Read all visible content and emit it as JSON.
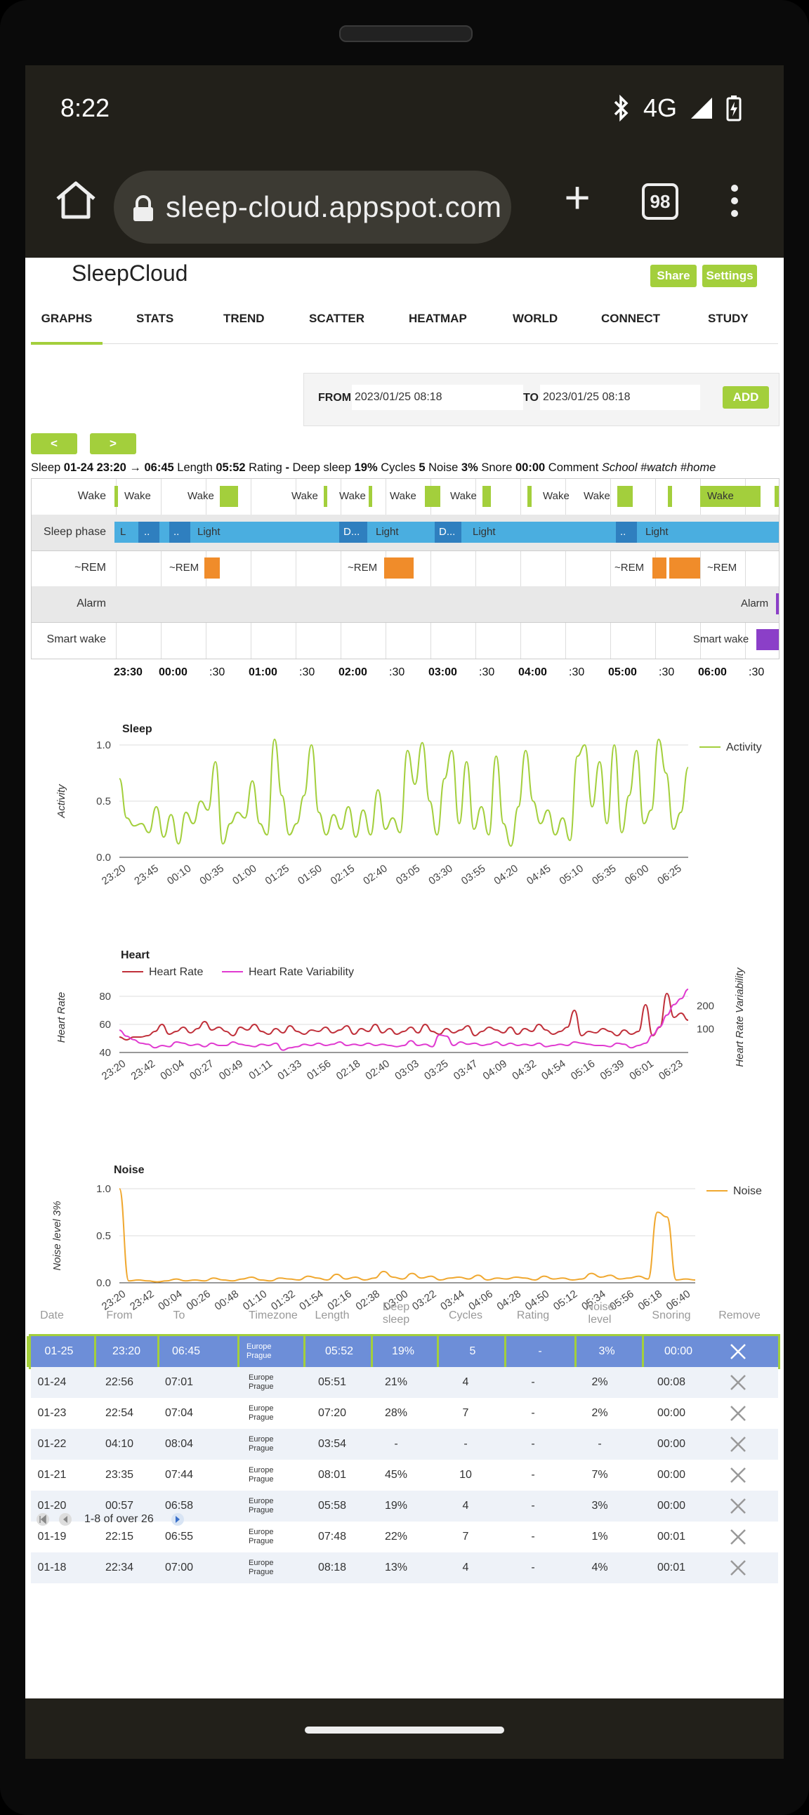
{
  "status": {
    "time": "8:22",
    "network": "4G"
  },
  "browser": {
    "url": "sleep-cloud.appspot.com",
    "tab_count": "98"
  },
  "app": {
    "title": "SleepCloud",
    "share_label": "Share",
    "settings_label": "Settings",
    "tabs": [
      "GRAPHS",
      "STATS",
      "TREND",
      "SCATTER",
      "HEATMAP",
      "WORLD",
      "CONNECT",
      "STUDY"
    ],
    "active_tab": "GRAPHS",
    "range": {
      "from_label": "FROM",
      "from_value": "2023/01/25 08:18",
      "to_label": "TO",
      "to_value": "2023/01/25 08:18",
      "add_label": "ADD"
    },
    "prev_label": "<",
    "next_label": ">"
  },
  "summary": {
    "prefix": "Sleep",
    "start": "01-24 23:20",
    "arrow": "→",
    "end": "06:45",
    "length_label": "Length",
    "length": "05:52",
    "rating_label": "Rating",
    "rating": "-",
    "deep_label": "Deep sleep",
    "deep": "19%",
    "cycles_label": "Cycles",
    "cycles": "5",
    "noise_label": "Noise",
    "noise": "3%",
    "snore_label": "Snore",
    "snore": "00:00",
    "comment_label": "Comment",
    "comment": "School #watch #home"
  },
  "timeline": {
    "rows": [
      "Wake",
      "Sleep phase",
      "~REM",
      "Alarm",
      "Smart wake"
    ],
    "wake_labels": [
      "Wake",
      "Wake",
      "Wake",
      "Wake",
      "Wake",
      "Wake",
      "Wake",
      "Wake",
      "Wake"
    ],
    "phase_labels": [
      "L",
      "..",
      "..",
      "Light",
      "D...",
      "Light",
      "D...",
      "Light",
      "..",
      "Light"
    ],
    "rem_labels": [
      "~REM",
      "~REM",
      "~REM",
      "~REM"
    ],
    "alarm_label": "Alarm",
    "smart_wake_label": "Smart wake",
    "ticks": [
      "23:30",
      "00:00",
      ":30",
      "01:00",
      ":30",
      "02:00",
      ":30",
      "03:00",
      ":30",
      "04:00",
      ":30",
      "05:00",
      ":30",
      "06:00",
      ":30"
    ],
    "colors": {
      "wake": "#a3cf3c",
      "light": "#4aaee0",
      "deep": "#2f7fbf",
      "rem": "#f08c2a",
      "alarm": "#8b3fc8"
    }
  },
  "chart_data": [
    {
      "type": "line",
      "title": "Sleep",
      "ylabel": "Activity",
      "legend": "top-right",
      "ylim": [
        0,
        1.0
      ],
      "yticks": [
        "0.0",
        "0.5",
        "1.0"
      ],
      "xticks": [
        "23:20",
        "23:45",
        "00:10",
        "00:35",
        "01:00",
        "01:25",
        "01:50",
        "02:15",
        "02:40",
        "03:05",
        "03:30",
        "03:55",
        "04:20",
        "04:45",
        "05:10",
        "05:35",
        "06:00",
        "06:25"
      ],
      "series": [
        {
          "name": "Activity",
          "color": "#a3cf3c",
          "values": [
            0.7,
            0.35,
            0.28,
            0.3,
            0.22,
            0.45,
            0.18,
            0.38,
            0.12,
            0.4,
            0.3,
            0.5,
            0.42,
            0.85,
            0.12,
            0.3,
            0.4,
            0.35,
            0.68,
            0.3,
            0.2,
            1.05,
            0.55,
            0.2,
            0.3,
            0.55,
            1.0,
            0.4,
            0.2,
            0.38,
            0.25,
            0.45,
            0.18,
            0.42,
            0.2,
            0.6,
            0.25,
            0.35,
            0.22,
            0.95,
            0.65,
            1.02,
            0.5,
            0.2,
            0.7,
            0.95,
            0.3,
            0.85,
            0.25,
            0.45,
            0.2,
            0.9,
            0.3,
            0.1,
            0.45,
            0.95,
            0.5,
            0.3,
            0.42,
            0.2,
            0.35,
            0.15,
            0.9,
            1.0,
            0.45,
            0.85,
            0.3,
            1.0,
            0.22,
            0.55,
            0.95,
            0.3,
            0.42,
            1.05,
            0.75,
            0.25,
            0.4,
            0.8
          ]
        }
      ]
    },
    {
      "type": "line",
      "title": "Heart",
      "ylabel": "Heart Rate",
      "y2label": "Heart Rate Variability",
      "legend": "top-left",
      "ylim": [
        40,
        90
      ],
      "y2lim": [
        0,
        300
      ],
      "yticks": [
        "40",
        "60",
        "80"
      ],
      "y2ticks": [
        "100",
        "200"
      ],
      "xticks": [
        "23:20",
        "23:42",
        "00:04",
        "00:27",
        "00:49",
        "01:11",
        "01:33",
        "01:56",
        "02:18",
        "02:40",
        "03:03",
        "03:25",
        "03:47",
        "04:09",
        "04:32",
        "04:54",
        "05:16",
        "05:39",
        "06:01",
        "06:23"
      ],
      "series": [
        {
          "name": "Heart Rate",
          "color": "#c0303a",
          "values": [
            51,
            49,
            51,
            51,
            52,
            55,
            60,
            53,
            55,
            58,
            54,
            57,
            62,
            56,
            58,
            55,
            52,
            58,
            56,
            60,
            55,
            53,
            57,
            54,
            59,
            55,
            53,
            56,
            55,
            58,
            54,
            56,
            59,
            53,
            57,
            55,
            60,
            54,
            57,
            53,
            55,
            58,
            54,
            60,
            55,
            53,
            57,
            54,
            56,
            59,
            52,
            55,
            58,
            56,
            54,
            58,
            53,
            57,
            55,
            60,
            56,
            53,
            55,
            58,
            70,
            52,
            55,
            54,
            57,
            55,
            52,
            56,
            53,
            55,
            74,
            52,
            58,
            82,
            65,
            68,
            63
          ]
        },
        {
          "name": "Heart Rate Variability",
          "color": "#e03ad0",
          "values": [
            95,
            70,
            55,
            40,
            35,
            20,
            30,
            25,
            45,
            40,
            30,
            35,
            25,
            40,
            30,
            30,
            45,
            35,
            30,
            25,
            35,
            30,
            40,
            10,
            20,
            25,
            35,
            30,
            40,
            30,
            35,
            45,
            30,
            35,
            30,
            40,
            30,
            35,
            30,
            25,
            30,
            50,
            30,
            35,
            25,
            75,
            70,
            30,
            45,
            35,
            40,
            30,
            35,
            45,
            30,
            40,
            30,
            35,
            30,
            40,
            25,
            30,
            35,
            30,
            45,
            40,
            35,
            30,
            30,
            25,
            40,
            35,
            20,
            30,
            40,
            75,
            110,
            160,
            205,
            230,
            270
          ]
        }
      ]
    },
    {
      "type": "line",
      "title": "Noise",
      "ylabel": "Noise level 3%",
      "legend": "top-right",
      "ylim": [
        0,
        1.0
      ],
      "yticks": [
        "0.0",
        "0.5",
        "1.0"
      ],
      "xticks": [
        "23:20",
        "23:42",
        "00:04",
        "00:26",
        "00:48",
        "01:10",
        "01:32",
        "01:54",
        "02:16",
        "02:38",
        "03:00",
        "03:22",
        "03:44",
        "04:06",
        "04:28",
        "04:50",
        "05:12",
        "05:34",
        "05:56",
        "06:18",
        "06:40"
      ],
      "series": [
        {
          "name": "Noise",
          "color": "#f0a830",
          "values": [
            1.0,
            0.02,
            0.03,
            0.02,
            0.01,
            0.02,
            0.04,
            0.02,
            0.03,
            0.02,
            0.05,
            0.03,
            0.02,
            0.04,
            0.06,
            0.03,
            0.02,
            0.05,
            0.04,
            0.03,
            0.07,
            0.05,
            0.03,
            0.09,
            0.04,
            0.06,
            0.03,
            0.05,
            0.12,
            0.06,
            0.04,
            0.1,
            0.05,
            0.07,
            0.03,
            0.05,
            0.06,
            0.04,
            0.08,
            0.03,
            0.05,
            0.04,
            0.06,
            0.05,
            0.03,
            0.07,
            0.04,
            0.05,
            0.03,
            0.04,
            0.1,
            0.06,
            0.08,
            0.04,
            0.05,
            0.07,
            0.04,
            0.75,
            0.7,
            0.03,
            0.04,
            0.03
          ]
        }
      ]
    }
  ],
  "table": {
    "headers": [
      "Date",
      "From",
      "To",
      "Timezone",
      "Length",
      "Deep sleep",
      "Cycles",
      "Rating",
      "Noise level",
      "Snoring",
      "Remove"
    ],
    "rows": [
      {
        "date": "01-25",
        "from": "23:20",
        "to": "06:45",
        "tz1": "Europe",
        "tz2": "Prague",
        "length": "05:52",
        "deep": "19%",
        "cycles": "5",
        "rating": "-",
        "noise": "3%",
        "snoring": "00:00"
      },
      {
        "date": "01-24",
        "from": "22:56",
        "to": "07:01",
        "tz1": "Europe",
        "tz2": "Prague",
        "length": "05:51",
        "deep": "21%",
        "cycles": "4",
        "rating": "-",
        "noise": "2%",
        "snoring": "00:08"
      },
      {
        "date": "01-23",
        "from": "22:54",
        "to": "07:04",
        "tz1": "Europe",
        "tz2": "Prague",
        "length": "07:20",
        "deep": "28%",
        "cycles": "7",
        "rating": "-",
        "noise": "2%",
        "snoring": "00:00"
      },
      {
        "date": "01-22",
        "from": "04:10",
        "to": "08:04",
        "tz1": "Europe",
        "tz2": "Prague",
        "length": "03:54",
        "deep": "-",
        "cycles": "-",
        "rating": "-",
        "noise": "-",
        "snoring": "00:00"
      },
      {
        "date": "01-21",
        "from": "23:35",
        "to": "07:44",
        "tz1": "Europe",
        "tz2": "Prague",
        "length": "08:01",
        "deep": "45%",
        "cycles": "10",
        "rating": "-",
        "noise": "7%",
        "snoring": "00:00"
      },
      {
        "date": "01-20",
        "from": "00:57",
        "to": "06:58",
        "tz1": "Europe",
        "tz2": "Prague",
        "length": "05:58",
        "deep": "19%",
        "cycles": "4",
        "rating": "-",
        "noise": "3%",
        "snoring": "00:00"
      },
      {
        "date": "01-19",
        "from": "22:15",
        "to": "06:55",
        "tz1": "Europe",
        "tz2": "Prague",
        "length": "07:48",
        "deep": "22%",
        "cycles": "7",
        "rating": "-",
        "noise": "1%",
        "snoring": "00:01"
      },
      {
        "date": "01-18",
        "from": "22:34",
        "to": "07:00",
        "tz1": "Europe",
        "tz2": "Prague",
        "length": "08:18",
        "deep": "13%",
        "cycles": "4",
        "rating": "-",
        "noise": "4%",
        "snoring": "00:01"
      }
    ],
    "pager_text": "1-8 of over 26"
  }
}
